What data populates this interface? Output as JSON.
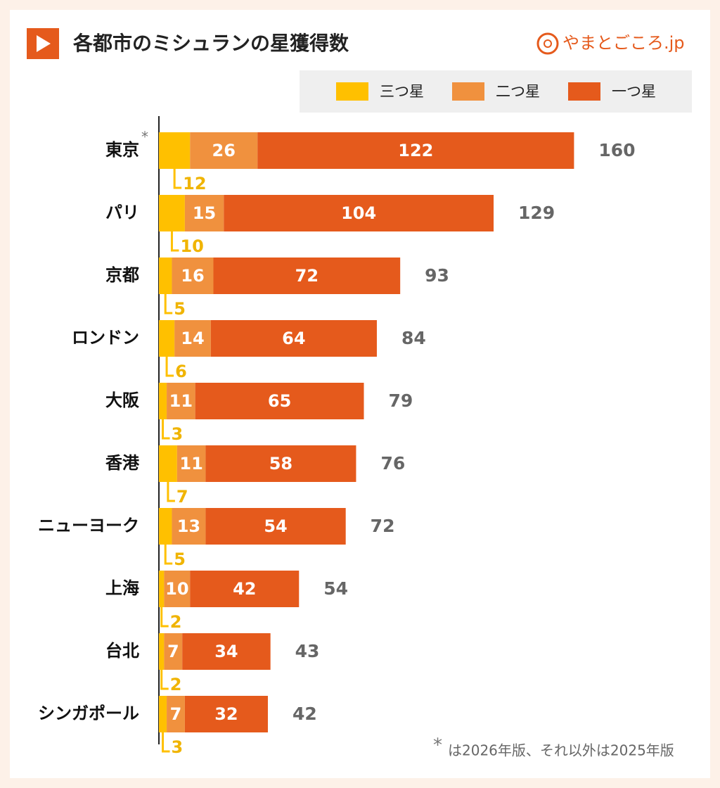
{
  "chart_data": {
    "type": "bar",
    "orientation": "horizontal",
    "stacked": true,
    "title": "各都市のミシュランの星獲得数",
    "source": "やまとごころ.jp",
    "categories": [
      "東京",
      "パリ",
      "京都",
      "ロンドン",
      "大阪",
      "香港",
      "ニューヨーク",
      "上海",
      "台北",
      "シンガポール"
    ],
    "note_mark": "*",
    "noted_category": 0,
    "footnote": "は2026年版、それ以外は2025年版",
    "series": [
      {
        "name": "三つ星",
        "color": "#ffc000",
        "values": [
          12,
          10,
          5,
          6,
          3,
          7,
          5,
          2,
          2,
          3
        ]
      },
      {
        "name": "二つ星",
        "color": "#f0913e",
        "values": [
          26,
          15,
          16,
          14,
          11,
          11,
          13,
          10,
          7,
          7
        ]
      },
      {
        "name": "一つ星",
        "color": "#e55a1c",
        "values": [
          122,
          104,
          72,
          64,
          65,
          58,
          54,
          42,
          34,
          32
        ]
      }
    ],
    "totals": [
      160,
      129,
      93,
      84,
      79,
      76,
      72,
      54,
      43,
      42
    ],
    "xlim": [
      0,
      200
    ]
  }
}
